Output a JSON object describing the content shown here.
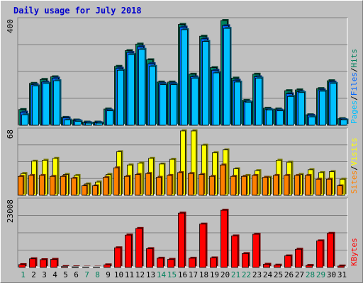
{
  "title": "Daily usage for July 2018",
  "colors": {
    "hits": "#00805c",
    "files": "#0066ff",
    "pages": "#00c0ff",
    "visits": "#ffff00",
    "sites": "#ff8000",
    "kbytes": "#ff0000",
    "weekday_label": "#000000",
    "weekend_label": "#00805c"
  },
  "panels": {
    "top": {
      "ymax_label": "400",
      "legend": [
        "Pages",
        "/",
        "Files",
        "/",
        "Hits"
      ]
    },
    "middle": {
      "ymax_label": "68",
      "legend": [
        "Sites",
        "/",
        "Visits"
      ]
    },
    "bottom": {
      "ymax_label": "23008",
      "legend": [
        "KBytes"
      ]
    }
  },
  "chart_data": [
    {
      "type": "bar",
      "title": "Daily usage for July 2018",
      "categories": [
        "1",
        "2",
        "3",
        "4",
        "5",
        "6",
        "7",
        "8",
        "9",
        "10",
        "11",
        "12",
        "13",
        "14",
        "15",
        "16",
        "17",
        "18",
        "19",
        "20",
        "21",
        "22",
        "23",
        "24",
        "25",
        "26",
        "27",
        "28",
        "29",
        "30",
        "31"
      ],
      "weekend_days": [
        "1",
        "7",
        "8",
        "14",
        "15",
        "21",
        "22",
        "28",
        "29"
      ],
      "ylim": [
        0,
        400
      ],
      "series": [
        {
          "name": "Hits",
          "values": [
            60,
            160,
            175,
            185,
            30,
            20,
            12,
            12,
            62,
            225,
            285,
            310,
            250,
            165,
            165,
            385,
            195,
            340,
            220,
            400,
            180,
            95,
            195,
            65,
            62,
            132,
            135,
            40,
            140,
            170,
            25
          ]
        },
        {
          "name": "Files",
          "values": [
            50,
            155,
            165,
            180,
            28,
            18,
            10,
            10,
            58,
            218,
            278,
            300,
            235,
            160,
            160,
            375,
            185,
            330,
            210,
            380,
            172,
            90,
            185,
            60,
            58,
            120,
            128,
            38,
            135,
            165,
            22
          ]
        },
        {
          "name": "Pages",
          "values": [
            40,
            150,
            160,
            170,
            20,
            15,
            8,
            8,
            55,
            210,
            270,
            290,
            225,
            155,
            155,
            365,
            180,
            320,
            200,
            370,
            165,
            88,
            180,
            58,
            55,
            110,
            125,
            32,
            130,
            160,
            20
          ]
        }
      ]
    },
    {
      "type": "bar",
      "ylim": [
        0,
        68
      ],
      "series": [
        {
          "name": "Visits",
          "values": [
            23,
            36,
            37,
            39,
            22,
            21,
            12,
            14,
            22,
            46,
            32,
            34,
            39,
            33,
            38,
            68,
            68,
            53,
            45,
            48,
            28,
            21,
            26,
            19,
            37,
            35,
            22,
            27,
            24,
            25,
            17
          ]
        },
        {
          "name": "Sites",
          "values": [
            20,
            21,
            21,
            20,
            20,
            18,
            10,
            10,
            19,
            29,
            20,
            22,
            23,
            19,
            21,
            24,
            23,
            22,
            20,
            32,
            20,
            20,
            21,
            19,
            21,
            21,
            21,
            21,
            17,
            17,
            10
          ]
        }
      ]
    },
    {
      "type": "bar",
      "ylim": [
        0,
        23008
      ],
      "series": [
        {
          "name": "KBytes",
          "values": [
            1000,
            3000,
            2700,
            2800,
            300,
            200,
            100,
            100,
            900,
            6800,
            11200,
            13500,
            6500,
            3200,
            2800,
            18800,
            3200,
            15000,
            3300,
            19800,
            10900,
            4800,
            11500,
            1100,
            800,
            4000,
            6300,
            700,
            9200,
            11800,
            500
          ]
        }
      ]
    }
  ]
}
